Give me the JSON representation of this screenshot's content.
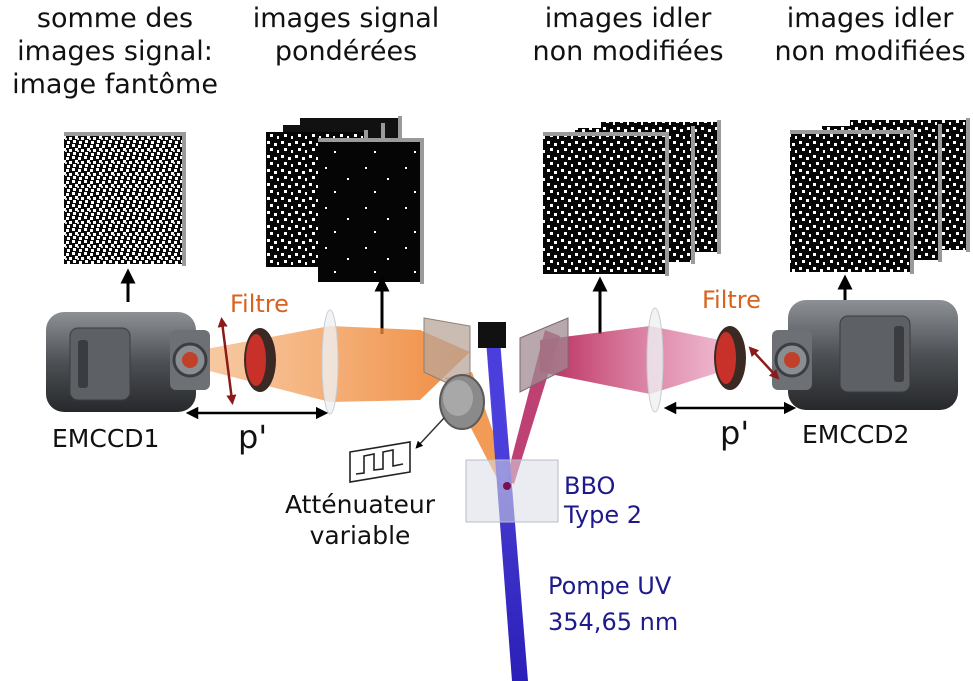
{
  "columns": [
    {
      "line1": "somme des",
      "line2": "images signal:",
      "line3": "image fantôme"
    },
    {
      "line1": "images signal",
      "line2": "pondérées"
    },
    {
      "line1": "images idler",
      "line2": "non modifiées"
    },
    {
      "line1": "images idler",
      "line2": "non modifiées"
    }
  ],
  "labels": {
    "filtre_left": "Filtre",
    "filtre_right": "Filtre",
    "emccd1": "EMCCD1",
    "emccd2": "EMCCD2",
    "p_left": "p'",
    "p_right": "p'",
    "attenuateur_line1": "Atténuateur",
    "attenuateur_line2": "variable",
    "bbo_line1": "BBO",
    "bbo_line2": "Type 2",
    "pompe_line1": "Pompe UV",
    "pompe_line2": "354,65 nm"
  },
  "colors": {
    "orange_beam": "#f08a3a",
    "magenta_beam": "#c2185b",
    "uv_beam": "#3a2fd0",
    "orange_text": "#d8621e",
    "blue_text": "#1e1a8c"
  }
}
